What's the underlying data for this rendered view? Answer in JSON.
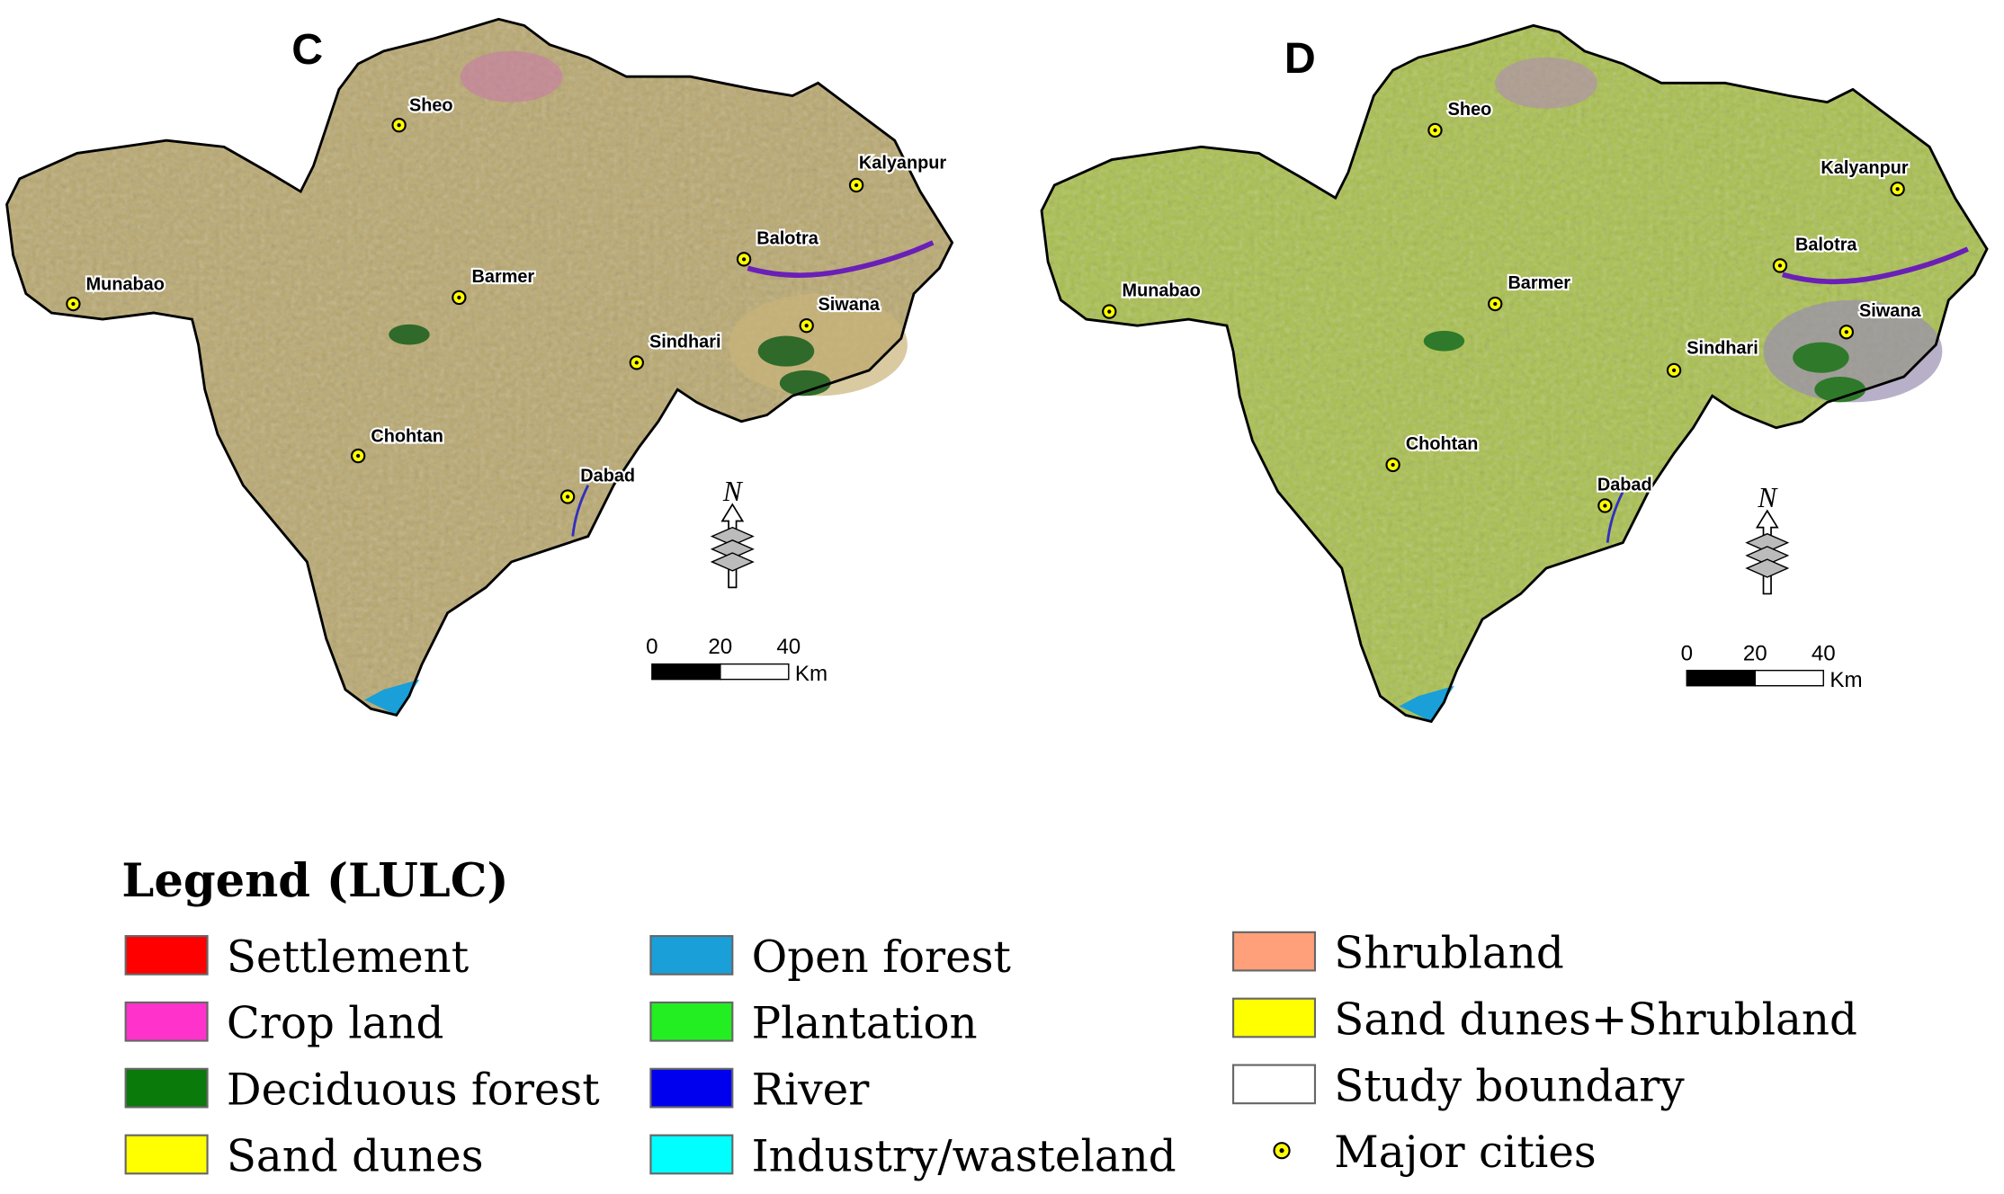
{
  "panels": [
    {
      "label": "C",
      "north": "N",
      "scale": {
        "ticks": [
          "0",
          "20",
          "40"
        ],
        "unit": "Km"
      },
      "cities": [
        "Sheo",
        "Kalyanpur",
        "Balotra",
        "Munabao",
        "Barmer",
        "Siwana",
        "Sindhari",
        "Chohtan",
        "Dabad"
      ]
    },
    {
      "label": "D",
      "north": "N",
      "scale": {
        "ticks": [
          "0",
          "20",
          "40"
        ],
        "unit": "Km"
      },
      "cities": [
        "Sheo",
        "Kalyanpur",
        "Balotra",
        "Munabao",
        "Barmer",
        "Siwana",
        "Sindhari",
        "Chohtan",
        "Dabad"
      ]
    }
  ],
  "legend": {
    "title": "Legend (LULC)",
    "items": [
      {
        "label": "Settlement",
        "color": "#ff0000"
      },
      {
        "label": "Crop land",
        "color": "#ff33cc"
      },
      {
        "label": "Deciduous forest",
        "color": "#0a7a0a"
      },
      {
        "label": "Sand dunes",
        "color": "#ffff00"
      },
      {
        "label": "Open forest",
        "color": "#1a9fd8"
      },
      {
        "label": "Plantation",
        "color": "#22ee22"
      },
      {
        "label": "River",
        "color": "#0000ee"
      },
      {
        "label": "Industry/wasteland",
        "color": "#00ffff"
      },
      {
        "label": "Shrubland",
        "color": "#ffa07a"
      },
      {
        "label": "Sand dunes+Shrubland",
        "color": "#ffff00"
      },
      {
        "label": "Study boundary",
        "color": "#ffffff"
      },
      {
        "label": "Major cities",
        "color": "#ffff00"
      }
    ]
  }
}
